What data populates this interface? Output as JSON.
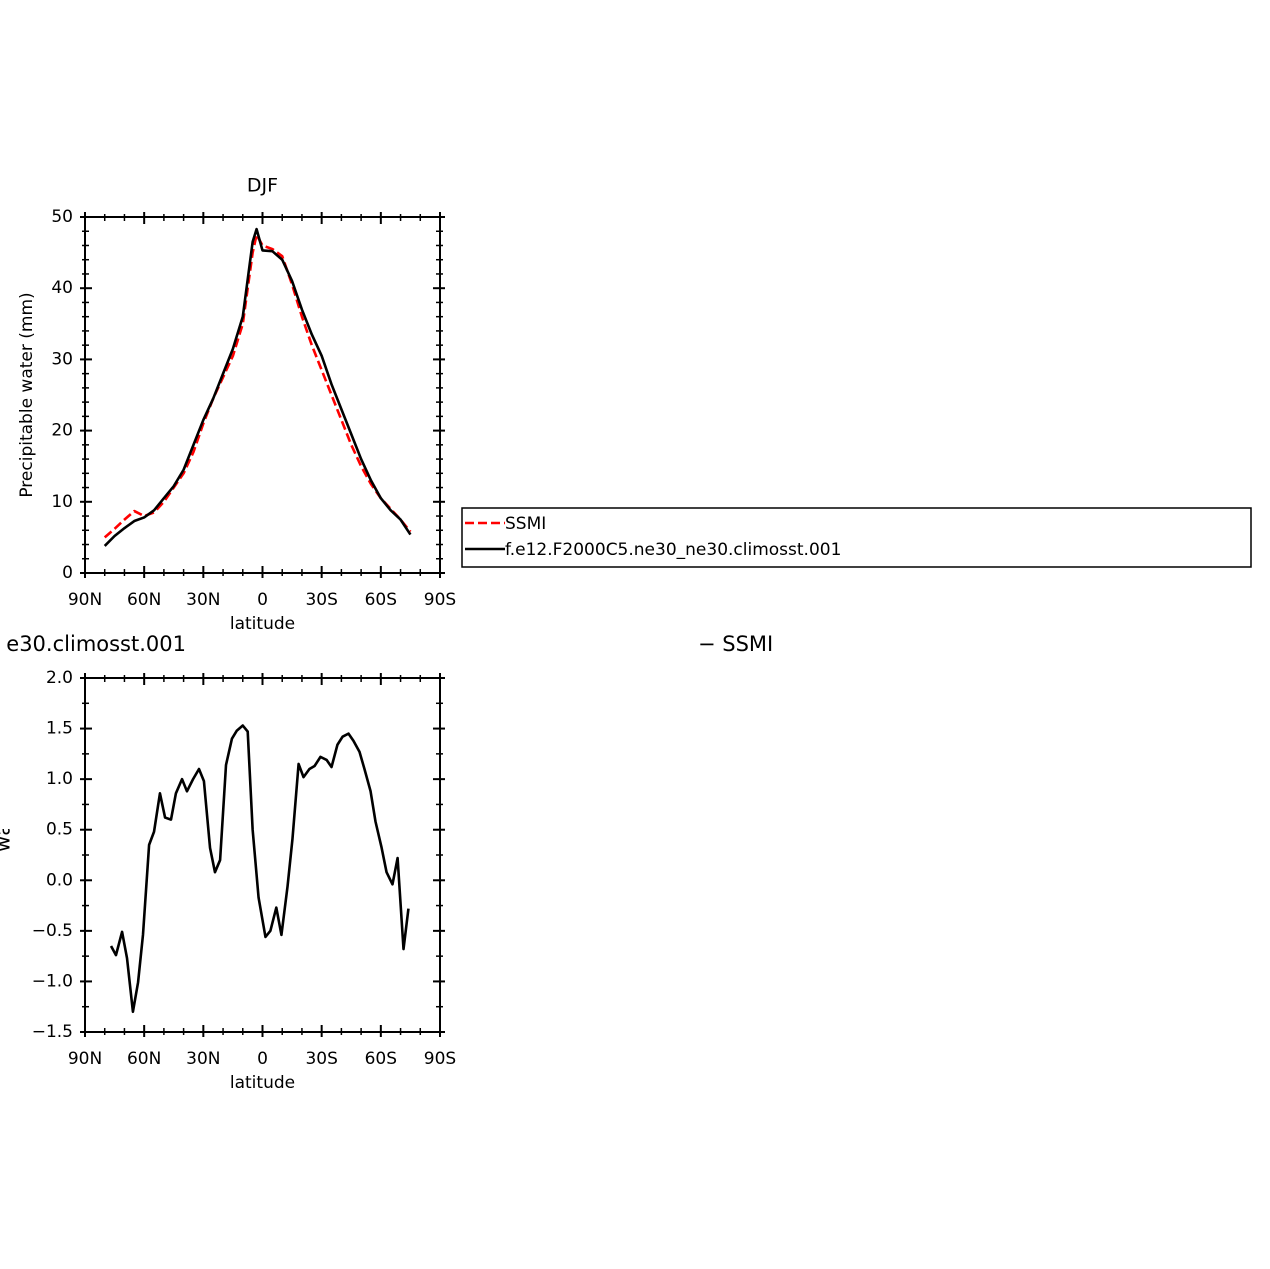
{
  "chart_data": [
    {
      "type": "line",
      "title": "DJF",
      "xlabel": "latitude",
      "ylabel": "Precipitable water (mm)",
      "x": [
        80,
        75,
        70,
        65,
        60,
        55,
        50,
        45,
        40,
        35,
        30,
        25,
        20,
        15,
        10,
        5,
        3,
        0,
        -5,
        -10,
        -15,
        -20,
        -25,
        -30,
        -35,
        -40,
        -45,
        -50,
        -55,
        -60,
        -65,
        -70,
        -75
      ],
      "series": [
        {
          "name": "SSMI",
          "color": "#ff0000",
          "dash": true,
          "values": [
            5.0,
            6.2,
            7.5,
            8.7,
            8.0,
            8.5,
            10,
            12,
            14,
            17,
            21,
            24.5,
            27.5,
            30.5,
            35,
            45,
            47.5,
            46,
            45.5,
            44.5,
            40.5,
            36,
            32,
            28.5,
            25,
            21.5,
            18,
            15,
            12.5,
            10.5,
            9,
            7.5,
            5.8
          ]
        },
        {
          "name": "f.e12.F2000C5.ne30_ne30.climosst.001",
          "color": "#000000",
          "dash": false,
          "values": [
            3.8,
            5.2,
            6.3,
            7.3,
            7.8,
            8.8,
            10.5,
            12.2,
            14.5,
            18,
            21.5,
            24.5,
            28,
            31.5,
            36,
            46.5,
            48.3,
            45.3,
            45.2,
            44,
            41,
            37,
            33.5,
            30.5,
            26.5,
            23,
            19.5,
            16,
            13,
            10.5,
            8.8,
            7.5,
            5.4
          ]
        }
      ],
      "xlim": [
        90,
        -90
      ],
      "xticks": [
        {
          "value": 90,
          "label": "90N"
        },
        {
          "value": 60,
          "label": "60N"
        },
        {
          "value": 30,
          "label": "30N"
        },
        0,
        {
          "value": -30,
          "label": "30S"
        },
        {
          "value": -60,
          "label": "60S"
        },
        {
          "value": -90,
          "label": "90S"
        }
      ],
      "xminorticks": [
        80,
        70,
        50,
        40,
        20,
        10,
        -10,
        -20,
        -40,
        -50,
        -70,
        -80
      ],
      "ylim": [
        0,
        50
      ],
      "yticks": [
        0,
        10,
        20,
        30,
        40,
        50
      ],
      "yminorticks": [
        2,
        4,
        6,
        8,
        12,
        14,
        16,
        18,
        22,
        24,
        26,
        28,
        32,
        34,
        36,
        38,
        42,
        44,
        46,
        48
      ],
      "legend": "outside-right"
    },
    {
      "type": "line",
      "title_left": "e30.climosst.001",
      "title_right": "− SSMI",
      "xlabel": "latitude",
      "ylabel": "Precipitable water (mm)",
      "x": [
        76.8,
        74.3,
        71.2,
        68.7,
        65.7,
        63.1,
        60.6,
        57.5,
        55,
        52,
        49.4,
        46.4,
        43.9,
        40.8,
        38.3,
        35.2,
        32.2,
        29.7,
        26.6,
        24.1,
        21.5,
        18.5,
        15.5,
        13,
        10,
        7.5,
        5,
        2,
        -1.5,
        -4,
        -7,
        -9.6,
        -12.7,
        -15.2,
        -18.3,
        -20.8,
        -23.8,
        -26.4,
        -29.4,
        -32.5,
        -35,
        -38,
        -40.6,
        -43.6,
        -46.1,
        -49.2,
        -51.7,
        -54.8,
        -57.3,
        -60.3,
        -62.9,
        -65.9,
        -68.5,
        -71.5,
        -74
      ],
      "series": [
        {
          "color": "#000000",
          "dash": false,
          "values": [
            -0.65,
            -0.74,
            -0.51,
            -0.77,
            -1.3,
            -1.01,
            -0.54,
            0.35,
            0.48,
            0.86,
            0.62,
            0.6,
            0.86,
            1.0,
            0.88,
            1.0,
            1.1,
            0.98,
            0.32,
            0.08,
            0.2,
            1.14,
            1.4,
            1.48,
            1.53,
            1.47,
            0.5,
            -0.17,
            -0.56,
            -0.5,
            -0.27,
            -0.54,
            -0.06,
            0.41,
            1.15,
            1.02,
            1.1,
            1.13,
            1.22,
            1.19,
            1.12,
            1.34,
            1.42,
            1.45,
            1.38,
            1.27,
            1.1,
            0.88,
            0.58,
            0.33,
            0.08,
            -0.04,
            0.22,
            -0.68,
            -0.28
          ]
        }
      ],
      "xlim": [
        90,
        -90
      ],
      "xticks": [
        {
          "value": 90,
          "label": "90N"
        },
        {
          "value": 60,
          "label": "60N"
        },
        {
          "value": 30,
          "label": "30N"
        },
        0,
        {
          "value": -30,
          "label": "30S"
        },
        {
          "value": -60,
          "label": "60S"
        },
        {
          "value": -90,
          "label": "90S"
        }
      ],
      "xminorticks": [
        80,
        70,
        50,
        40,
        20,
        10,
        -10,
        -20,
        -40,
        -50,
        -70,
        -80
      ],
      "ylim": [
        -1.5,
        2
      ],
      "yticks": [
        {
          "value": -1.5,
          "label": "−1.5"
        },
        {
          "value": -1,
          "label": "−1.0"
        },
        {
          "value": -0.5,
          "label": "−0.5"
        },
        {
          "value": 0,
          "label": "0.0"
        },
        0.5,
        {
          "value": 1,
          "label": "1.0"
        },
        1.5,
        {
          "value": 2,
          "label": "2.0"
        }
      ],
      "yminorticks": [
        -1.25,
        -0.75,
        -0.25,
        0.25,
        0.75,
        1.25,
        1.75
      ]
    }
  ]
}
